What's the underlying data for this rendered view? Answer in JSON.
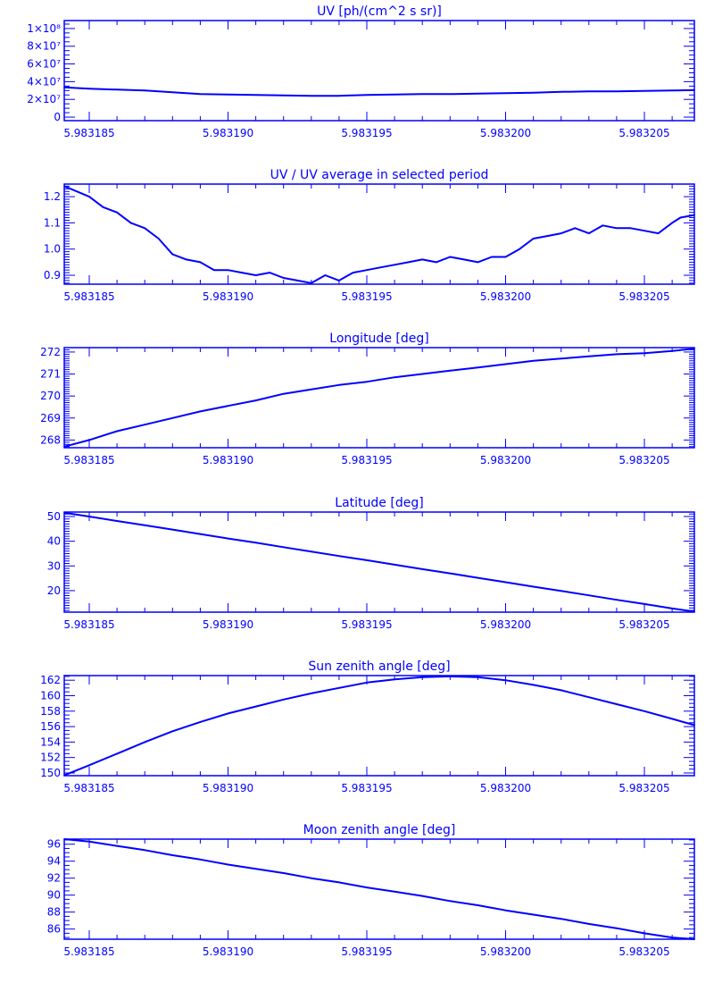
{
  "color": "#0000ff",
  "chart_data": [
    {
      "type": "line",
      "title": "UV [ph/(cm^2 s sr)]",
      "xlim": [
        5.9831841,
        5.9832068
      ],
      "xticks": [
        "5.983185",
        "5.983190",
        "5.983195",
        "5.983200",
        "5.983205"
      ],
      "xtick_values": [
        5.983185,
        5.98319,
        5.983195,
        5.9832,
        5.983205
      ],
      "ylim": [
        -4000000,
        109000000
      ],
      "yticks": [
        "0",
        "2×10⁷",
        "4×10⁷",
        "6×10⁷",
        "8×10⁷",
        "1×10⁸"
      ],
      "ytick_values": [
        0,
        20000000,
        40000000,
        60000000,
        80000000,
        100000000
      ],
      "yminor": 5000000,
      "x": [
        5.9831841,
        5.983185,
        5.983186,
        5.983187,
        5.983188,
        5.983189,
        5.98319,
        5.983191,
        5.983192,
        5.983193,
        5.983194,
        5.983195,
        5.983196,
        5.983197,
        5.983198,
        5.983199,
        5.9832,
        5.983201,
        5.983202,
        5.983203,
        5.983204,
        5.983205,
        5.983206,
        5.9832068
      ],
      "y": [
        33500000,
        32000000,
        31000000,
        30000000,
        28000000,
        26000000,
        25500000,
        25000000,
        24500000,
        24000000,
        24000000,
        25000000,
        25500000,
        26000000,
        26000000,
        26500000,
        27000000,
        27500000,
        28500000,
        29000000,
        29000000,
        29500000,
        30000000,
        30500000
      ]
    },
    {
      "type": "line",
      "title": "UV / UV average in selected period",
      "xlim": [
        5.9831841,
        5.9832068
      ],
      "xticks": [
        "5.983185",
        "5.983190",
        "5.983195",
        "5.983200",
        "5.983205"
      ],
      "xtick_values": [
        5.983185,
        5.98319,
        5.983195,
        5.9832,
        5.983205
      ],
      "ylim": [
        0.866,
        1.248
      ],
      "yticks": [
        "0.9",
        "1.0",
        "1.1",
        "1.2"
      ],
      "ytick_values": [
        0.9,
        1.0,
        1.1,
        1.2
      ],
      "yminor": 0.01,
      "x": [
        5.9831841,
        5.983185,
        5.9831855,
        5.983186,
        5.9831865,
        5.983187,
        5.9831875,
        5.983188,
        5.9831885,
        5.983189,
        5.9831895,
        5.98319,
        5.9831905,
        5.983191,
        5.9831915,
        5.983192,
        5.9831925,
        5.983193,
        5.9831935,
        5.983194,
        5.9831945,
        5.983195,
        5.9831955,
        5.983196,
        5.9831965,
        5.983197,
        5.9831975,
        5.983198,
        5.9831985,
        5.983199,
        5.9831995,
        5.9832,
        5.9832005,
        5.983201,
        5.9832015,
        5.983202,
        5.9832025,
        5.983203,
        5.9832035,
        5.983204,
        5.9832045,
        5.983205,
        5.9832055,
        5.983206,
        5.9832063,
        5.9832068
      ],
      "y": [
        1.24,
        1.2,
        1.16,
        1.14,
        1.1,
        1.08,
        1.04,
        0.98,
        0.96,
        0.95,
        0.92,
        0.92,
        0.91,
        0.9,
        0.91,
        0.89,
        0.88,
        0.87,
        0.9,
        0.88,
        0.91,
        0.92,
        0.93,
        0.94,
        0.95,
        0.96,
        0.95,
        0.97,
        0.96,
        0.95,
        0.97,
        0.97,
        1.0,
        1.04,
        1.05,
        1.06,
        1.08,
        1.06,
        1.09,
        1.08,
        1.08,
        1.07,
        1.06,
        1.1,
        1.12,
        1.13
      ]
    },
    {
      "type": "line",
      "title": "Longitude [deg]",
      "xlim": [
        5.9831841,
        5.9832068
      ],
      "xticks": [
        "5.983185",
        "5.983190",
        "5.983195",
        "5.983200",
        "5.983205"
      ],
      "xtick_values": [
        5.983185,
        5.98319,
        5.983195,
        5.9832,
        5.983205
      ],
      "ylim": [
        267.65,
        272.2
      ],
      "yticks": [
        "268",
        "269",
        "270",
        "271",
        "272"
      ],
      "ytick_values": [
        268,
        269,
        270,
        271,
        272
      ],
      "yminor": 0.1,
      "x": [
        5.9831841,
        5.983185,
        5.983186,
        5.983187,
        5.983188,
        5.983189,
        5.98319,
        5.983191,
        5.983192,
        5.983193,
        5.983194,
        5.983195,
        5.983196,
        5.983197,
        5.983198,
        5.983199,
        5.9832,
        5.983201,
        5.983202,
        5.983203,
        5.983204,
        5.983205,
        5.983206,
        5.9832068
      ],
      "y": [
        267.7,
        268.0,
        268.4,
        268.7,
        269.0,
        269.3,
        269.55,
        269.8,
        270.1,
        270.3,
        270.5,
        270.65,
        270.85,
        271.0,
        271.15,
        271.3,
        271.45,
        271.6,
        271.7,
        271.8,
        271.9,
        271.95,
        272.05,
        272.15
      ]
    },
    {
      "type": "line",
      "title": "Latitude [deg]",
      "xlim": [
        5.9831841,
        5.9832068
      ],
      "xticks": [
        "5.983185",
        "5.983190",
        "5.983195",
        "5.983200",
        "5.983205"
      ],
      "xtick_values": [
        5.983185,
        5.98319,
        5.983195,
        5.9832,
        5.983205
      ],
      "ylim": [
        11.3,
        51.8
      ],
      "yticks": [
        "20",
        "30",
        "40",
        "50"
      ],
      "ytick_values": [
        20,
        30,
        40,
        50
      ],
      "yminor": 1,
      "x": [
        5.9831841,
        5.983185,
        5.983186,
        5.983187,
        5.983188,
        5.983189,
        5.98319,
        5.983191,
        5.983192,
        5.983193,
        5.983194,
        5.983195,
        5.983196,
        5.983197,
        5.983198,
        5.983199,
        5.9832,
        5.983201,
        5.983202,
        5.983203,
        5.983204,
        5.983205,
        5.983206,
        5.9832068
      ],
      "y": [
        51.5,
        50.0,
        48.2,
        46.5,
        44.7,
        42.9,
        41.1,
        39.4,
        37.6,
        35.8,
        34.0,
        32.3,
        30.5,
        28.7,
        27.0,
        25.2,
        23.4,
        21.6,
        19.9,
        18.1,
        16.3,
        14.6,
        12.8,
        11.5
      ]
    },
    {
      "type": "line",
      "title": "Sun zenith angle [deg]",
      "xlim": [
        5.9831841,
        5.9832068
      ],
      "xticks": [
        "5.983185",
        "5.983190",
        "5.983195",
        "5.983200",
        "5.983205"
      ],
      "xtick_values": [
        5.983185,
        5.98319,
        5.983195,
        5.9832,
        5.983205
      ],
      "ylim": [
        149.65,
        162.6
      ],
      "yticks": [
        "150",
        "152",
        "154",
        "156",
        "158",
        "160",
        "162"
      ],
      "ytick_values": [
        150,
        152,
        154,
        156,
        158,
        160,
        162
      ],
      "yminor": 0.5,
      "x": [
        5.9831841,
        5.983185,
        5.983186,
        5.983187,
        5.983188,
        5.983189,
        5.98319,
        5.983191,
        5.983192,
        5.983193,
        5.983194,
        5.983195,
        5.983196,
        5.983197,
        5.983198,
        5.983199,
        5.9832,
        5.983201,
        5.983202,
        5.983203,
        5.983204,
        5.983205,
        5.983206,
        5.9832068
      ],
      "y": [
        149.7,
        151.0,
        152.5,
        154.0,
        155.4,
        156.6,
        157.7,
        158.6,
        159.5,
        160.3,
        161.0,
        161.7,
        162.1,
        162.4,
        162.5,
        162.4,
        162.0,
        161.4,
        160.7,
        159.8,
        158.9,
        158.0,
        157.0,
        156.2
      ]
    },
    {
      "type": "line",
      "title": "Moon zenith angle [deg]",
      "xlim": [
        5.9831841,
        5.9832068
      ],
      "xticks": [
        "5.983185",
        "5.983190",
        "5.983195",
        "5.983200",
        "5.983205"
      ],
      "xtick_values": [
        5.983185,
        5.98319,
        5.983195,
        5.9832,
        5.983205
      ],
      "ylim": [
        84.8,
        96.6
      ],
      "yticks": [
        "86",
        "88",
        "90",
        "92",
        "94",
        "96"
      ],
      "ytick_values": [
        86,
        88,
        90,
        92,
        94,
        96
      ],
      "yminor": 0.5,
      "x": [
        5.9831841,
        5.983185,
        5.983186,
        5.983187,
        5.983188,
        5.983189,
        5.98319,
        5.983191,
        5.983192,
        5.983193,
        5.983194,
        5.983195,
        5.983196,
        5.983197,
        5.983198,
        5.983199,
        5.9832,
        5.983201,
        5.983202,
        5.983203,
        5.983204,
        5.983205,
        5.983206,
        5.9832068
      ],
      "y": [
        96.8,
        96.3,
        95.8,
        95.3,
        94.7,
        94.2,
        93.6,
        93.1,
        92.6,
        92.0,
        91.5,
        90.9,
        90.4,
        89.9,
        89.3,
        88.8,
        88.2,
        87.7,
        87.2,
        86.6,
        86.1,
        85.5,
        85.0,
        84.7
      ]
    }
  ]
}
